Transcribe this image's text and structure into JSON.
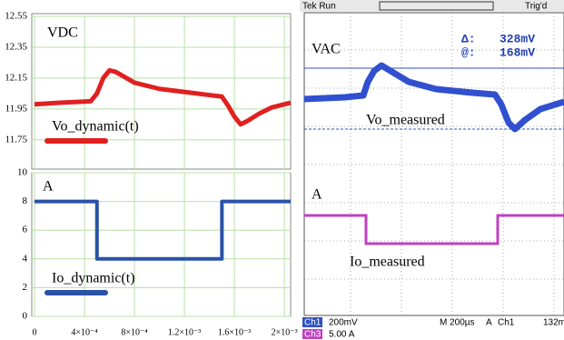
{
  "chart_data": [
    {
      "type": "line",
      "ylabel": "VDC",
      "x": [
        0,
        0.0002,
        0.00045,
        0.0005,
        0.00055,
        0.0006,
        0.00065,
        0.0008,
        0.001,
        0.0012,
        0.0014,
        0.0015,
        0.00155,
        0.0016,
        0.00165,
        0.0017,
        0.0018,
        0.0019,
        0.002,
        0.00205
      ],
      "series": [
        {
          "name": "Vo_dynamic(t)",
          "color": "#e02020",
          "values": [
            11.98,
            11.99,
            12.0,
            12.05,
            12.15,
            12.2,
            12.19,
            12.12,
            12.08,
            12.06,
            12.04,
            12.03,
            11.97,
            11.9,
            11.85,
            11.87,
            11.92,
            11.96,
            11.98,
            11.99
          ]
        }
      ],
      "xlim": [
        0,
        0.00205
      ],
      "ylim": [
        11.56,
        12.55
      ],
      "yticks": [
        11.75,
        11.95,
        12.15,
        12.35,
        12.55
      ],
      "grid": true
    },
    {
      "type": "line",
      "ylabel": "A",
      "x": [
        0,
        0.0005,
        0.0005,
        0.0015,
        0.0015,
        0.00205
      ],
      "series": [
        {
          "name": "Io_dynamic(t)",
          "color": "#2a52a8",
          "values": [
            8,
            8,
            4,
            4,
            8,
            8
          ]
        }
      ],
      "xlim": [
        0,
        0.00205
      ],
      "ylim": [
        0,
        10
      ],
      "yticks": [
        0,
        2,
        4,
        6,
        8,
        10
      ],
      "xticks": [
        0,
        {
          "value": 0.0004,
          "label": "4×10⁻⁴"
        },
        {
          "value": 0.0008,
          "label": "8×10⁻⁴"
        },
        {
          "value": 0.0012,
          "label": "1.2×10⁻³"
        },
        {
          "value": 0.0016,
          "label": "1.6×10⁻³"
        },
        {
          "value": 0.002,
          "label": "2×10⁻³"
        }
      ],
      "grid": true
    }
  ],
  "scope": {
    "status": "Tek Run",
    "trigger": "Trig'd",
    "upper_unit": "VAC",
    "delta_label": "Δ:",
    "delta_value": "328mV",
    "at_label": "@:",
    "at_value": "168mV",
    "upper_trace": "Vo_measured",
    "lower_unit": "A",
    "lower_trace": "Io_measured",
    "footer": {
      "ch1": "Ch1",
      "ch1_scale": "200mV",
      "timebase": "M 200µs",
      "trig_mode": "A",
      "trig_source": "Ch1",
      "trig_level": "132m",
      "ch3": "Ch3",
      "ch3_scale": "5.00 A"
    }
  }
}
